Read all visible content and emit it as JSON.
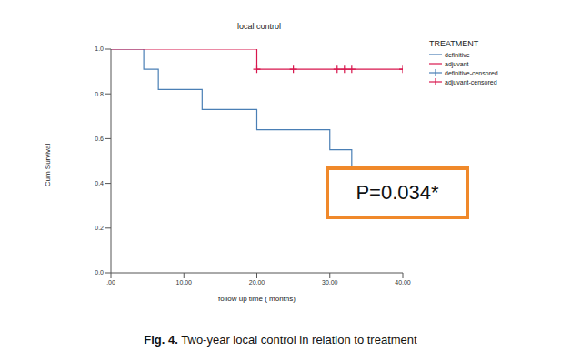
{
  "chart_data": {
    "type": "line",
    "title": "local control",
    "x_label": "follow up time ( months)",
    "y_label": "Cum Survival",
    "legend_title": "TREATMENT",
    "legend": "right",
    "grid": false,
    "line_style": "step",
    "xlim": [
      0,
      40
    ],
    "xticks": [
      {
        "value": 0,
        "label": ".00"
      },
      {
        "value": 10,
        "label": "10.00"
      },
      {
        "value": 20,
        "label": "20.00"
      },
      {
        "value": 30,
        "label": "30.00"
      },
      {
        "value": 40,
        "label": "40.00"
      }
    ],
    "ylim": [
      0,
      1
    ],
    "yticks": [
      {
        "value": 0,
        "label": "0.0"
      },
      0.2,
      0.4,
      0.6,
      0.8,
      {
        "value": 1,
        "label": "1.0"
      }
    ],
    "series": [
      {
        "name": "definitive",
        "color": "#4a7fb5",
        "type": "line",
        "line_style": "step",
        "x": [
          0,
          4.5,
          6.5,
          12.5,
          20,
          30,
          33,
          34
        ],
        "values": [
          1,
          0.91,
          0.82,
          0.73,
          0.64,
          0.55,
          0.46,
          0.46
        ]
      },
      {
        "name": "adjuvant",
        "color": "#d8164d",
        "type": "line",
        "line_style": "step",
        "x": [
          0,
          20,
          40
        ],
        "values": [
          1,
          0.91,
          0.91
        ]
      },
      {
        "name": "definitive-censored",
        "color": "#4a7fb5",
        "type": "scatter",
        "marker": "plus",
        "x": [],
        "values": []
      },
      {
        "name": "adjuvant-censored",
        "color": "#d8164d",
        "type": "scatter",
        "marker": "plus",
        "x": [
          20,
          25,
          31,
          32,
          33,
          40
        ],
        "values": [
          0.91,
          0.91,
          0.91,
          0.91,
          0.91,
          0.91
        ]
      }
    ],
    "annotation": "P=0.034*",
    "caption_label": "Fig. 4.",
    "caption": "Two-year local control in relation to treatment"
  }
}
